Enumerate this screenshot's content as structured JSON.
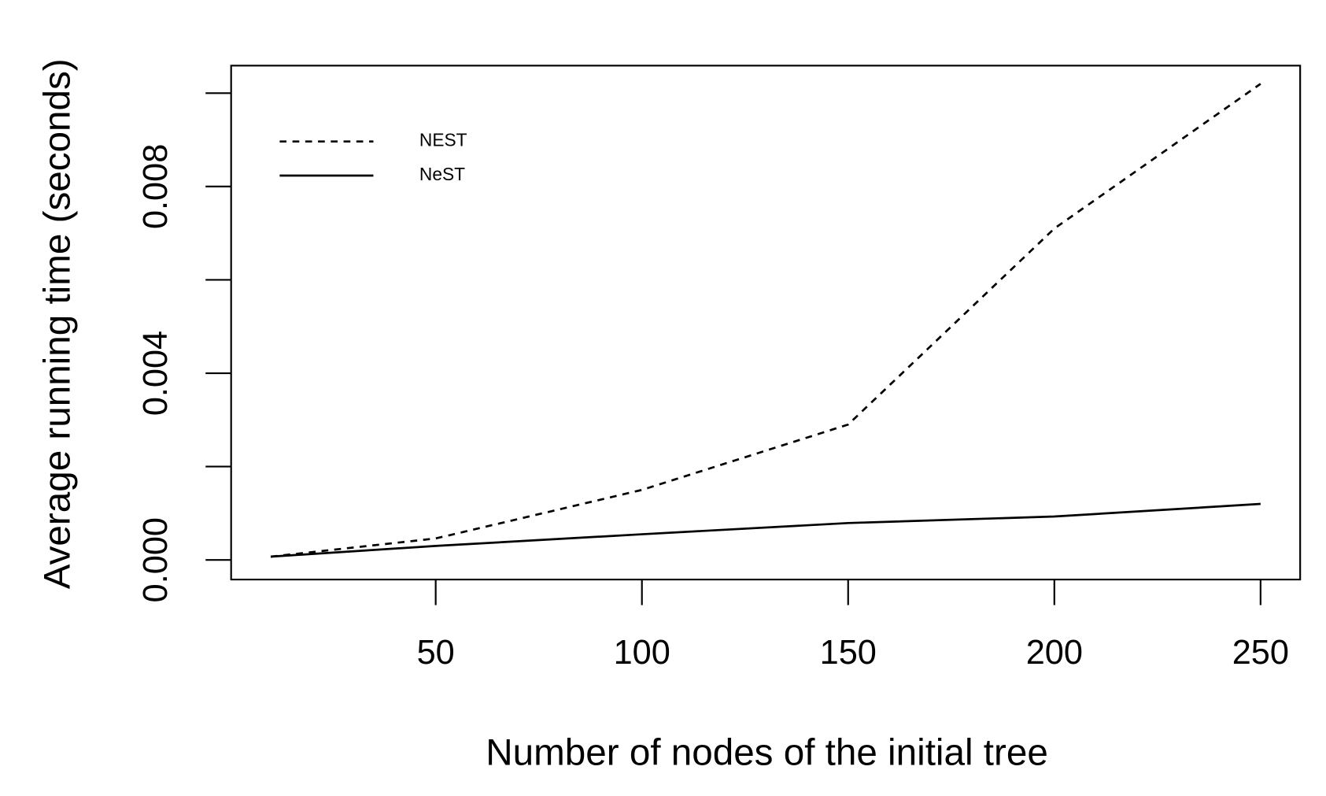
{
  "chart_data": {
    "type": "line",
    "xlabel": "Number of nodes of the initial tree",
    "ylabel": "Average running time (seconds)",
    "x": [
      10,
      50,
      100,
      150,
      200,
      250
    ],
    "series": [
      {
        "name": "NEST",
        "color": "#000000",
        "linestyle": "dashed",
        "values": [
          7e-05,
          0.00046,
          0.0015,
          0.0029,
          0.0071,
          0.0102
        ]
      },
      {
        "name": "NeST",
        "color": "#000000",
        "linestyle": "solid",
        "values": [
          7e-05,
          0.0003,
          0.00055,
          0.00079,
          0.00093,
          0.0012
        ]
      }
    ],
    "xlim": [
      0.4,
      259.6
    ],
    "ylim": [
      -0.00042,
      0.01059
    ],
    "xticks": [
      50,
      100,
      150,
      200,
      250
    ],
    "yticks": [
      {
        "value": 0,
        "label": "0.000"
      },
      {
        "value": 0.002,
        "label": null
      },
      {
        "value": 0.004,
        "label": "0.004"
      },
      {
        "value": 0.006,
        "label": null
      },
      {
        "value": 0.008,
        "label": "0.008"
      },
      {
        "value": 0.01,
        "label": null
      }
    ],
    "grid": false,
    "legend": "top-left"
  }
}
